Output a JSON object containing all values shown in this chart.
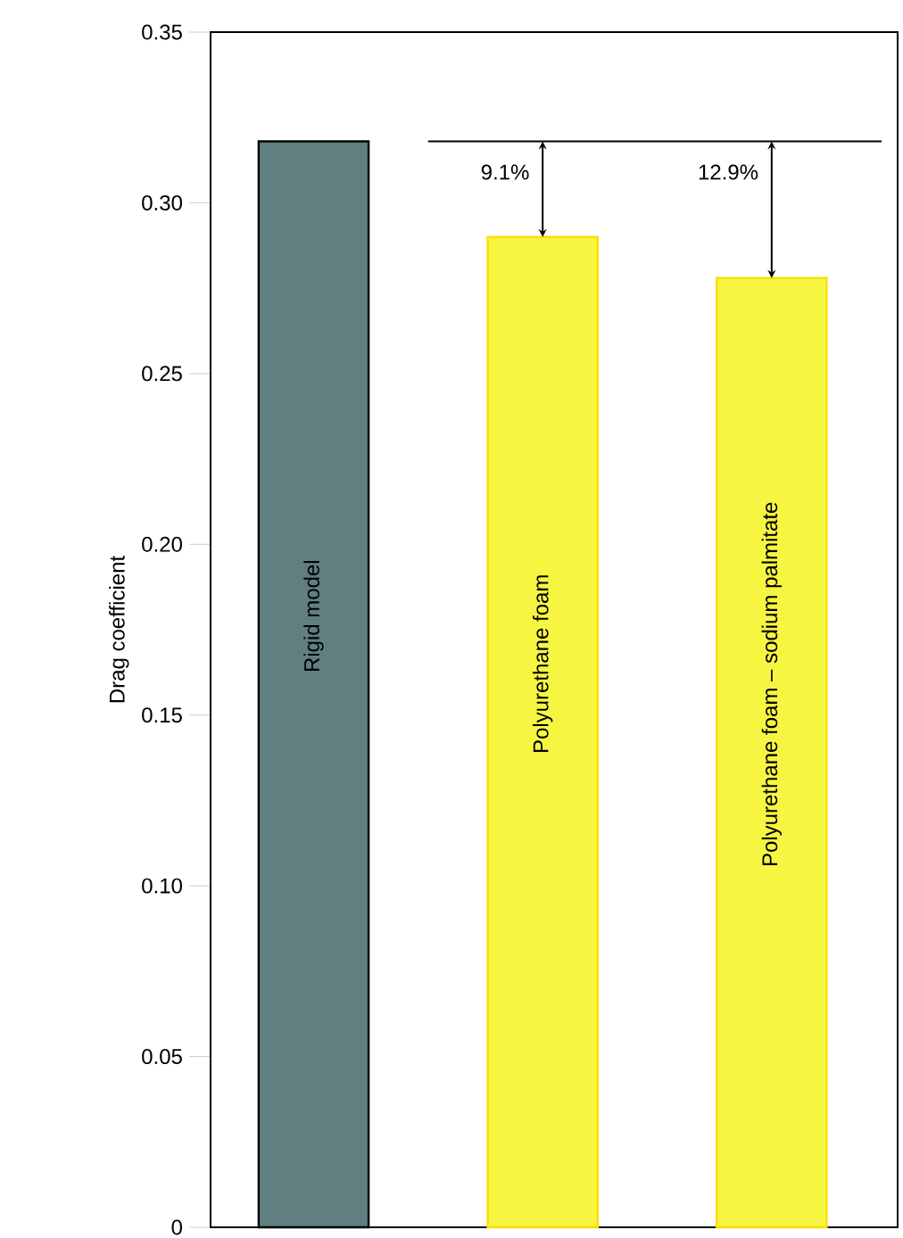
{
  "chart_data": {
    "type": "bar",
    "ylabel": "Drag coefficient",
    "categories": [
      "Rigid model",
      "Polyurethane foam",
      "Polyurethane foam – sodium palmitate"
    ],
    "values": [
      0.318,
      0.29,
      0.278
    ],
    "colors": [
      "#5f7f80",
      "#f6f542",
      "#f6f542"
    ],
    "ylim": [
      0,
      0.35
    ],
    "yticks": [
      {
        "value": 0,
        "label": "0"
      },
      0.05,
      {
        "value": 0.1,
        "label": "0.10"
      },
      0.15,
      {
        "value": 0.2,
        "label": "0.20"
      },
      0.25,
      {
        "value": 0.3,
        "label": "0.30"
      },
      0.35
    ],
    "tick_labels": "y",
    "ref_lines": [
      {
        "axis": "y",
        "value": 0.318,
        "color": "#000000"
      }
    ],
    "annotations": [
      {
        "text": "9.1%",
        "x": "Polyurethane foam",
        "y": 0.29
      },
      {
        "text": "12.9%",
        "x": "Polyurethane foam – sodium palmitate",
        "y": 0.278
      }
    ]
  }
}
